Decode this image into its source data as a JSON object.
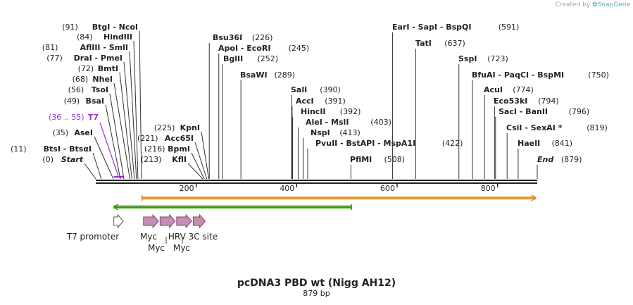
{
  "credit": {
    "prefix": "Created by",
    "brand": "SnapGene",
    "logo_icon": "snapgene-logo-icon"
  },
  "title": "pcDNA3 PBD wt (Nigg AH12)",
  "length_label": "879 bp",
  "sequence_length": 879,
  "colors": {
    "backbone": "#222222",
    "site_line": "#333333",
    "primer": "#9a32cd",
    "orf_orange_fill": "#fbd7a0",
    "orf_orange_stroke": "#e08a1e",
    "orf_green_fill": "#9fdc8a",
    "orf_green_stroke": "#3a8a1a",
    "tag_fill": "#c58fb3",
    "tag_stroke": "#7a4a6a"
  },
  "ruler_ticks": [
    {
      "label": "200",
      "pos": 200
    },
    {
      "label": "400",
      "pos": 400
    },
    {
      "label": "600",
      "pos": 600
    },
    {
      "label": "800",
      "pos": 800
    }
  ],
  "left_sites": [
    {
      "name": "Start",
      "pos_label": "(0)",
      "pos": 0,
      "italic": true
    },
    {
      "name": "BtsI - BtsαI",
      "pos_label": "(11)",
      "pos": 11
    },
    {
      "name": "AseI",
      "pos_label": "(35)",
      "pos": 35
    },
    {
      "name": "T7",
      "pos_label": "(36 .. 55)",
      "pos": 45,
      "primer": true
    },
    {
      "name": "BsaI",
      "pos_label": "(49)",
      "pos": 49
    },
    {
      "name": "TsoI",
      "pos_label": "(56)",
      "pos": 56
    },
    {
      "name": "NheI",
      "pos_label": "(68)",
      "pos": 68
    },
    {
      "name": "BmtI",
      "pos_label": "(72)",
      "pos": 72
    },
    {
      "name": "DraI - PmeI",
      "pos_label": "(77)",
      "pos": 77
    },
    {
      "name": "AflIII - SmlI",
      "pos_label": "(81)",
      "pos": 81
    },
    {
      "name": "HindIII",
      "pos_label": "(84)",
      "pos": 84
    },
    {
      "name": "BtgI - NcoI",
      "pos_label": "(91)",
      "pos": 91
    }
  ],
  "mid_left_sites": [
    {
      "name": "KflI",
      "pos_label": "(213)",
      "pos": 213
    },
    {
      "name": "BpmI",
      "pos_label": "(216)",
      "pos": 216
    },
    {
      "name": "Acc65I",
      "pos_label": "(221)",
      "pos": 221
    },
    {
      "name": "KpnI",
      "pos_label": "(225)",
      "pos": 225
    }
  ],
  "top_sites": [
    {
      "name": "Bsu36I",
      "pos_label": "(226)",
      "pos": 226
    },
    {
      "name": "ApoI - EcoRI",
      "pos_label": "(245)",
      "pos": 245
    },
    {
      "name": "BglII",
      "pos_label": "(252)",
      "pos": 252
    },
    {
      "name": "BsaWI",
      "pos_label": "(289)",
      "pos": 289
    },
    {
      "name": "SalI",
      "pos_label": "(390)",
      "pos": 390
    },
    {
      "name": "AccI",
      "pos_label": "(391)",
      "pos": 391
    },
    {
      "name": "HincII",
      "pos_label": "(392)",
      "pos": 392
    },
    {
      "name": "AleI - MslI",
      "pos_label": "(403)",
      "pos": 403
    },
    {
      "name": "NspI",
      "pos_label": "(413)",
      "pos": 413
    },
    {
      "name": "PvuII - BstAPI - MspA1I",
      "pos_label": "(422)",
      "pos": 422
    },
    {
      "name": "PflMI",
      "pos_label": "(508)",
      "pos": 508
    },
    {
      "name": "EarI - SapI - BspQI",
      "pos_label": "(591)",
      "pos": 591
    },
    {
      "name": "TatI",
      "pos_label": "(637)",
      "pos": 637
    },
    {
      "name": "SspI",
      "pos_label": "(723)",
      "pos": 723
    },
    {
      "name": "BfuAI - PaqCI - BspMI",
      "pos_label": "(750)",
      "pos": 750
    },
    {
      "name": "AcuI",
      "pos_label": "(774)",
      "pos": 774
    },
    {
      "name": "Eco53kI",
      "pos_label": "(794)",
      "pos": 794
    },
    {
      "name": "SacI - BanII",
      "pos_label": "(796)",
      "pos": 796
    },
    {
      "name": "CsiI - SexAI *",
      "pos_label": "(819)",
      "pos": 819
    },
    {
      "name": "HaeII",
      "pos_label": "(841)",
      "pos": 841
    },
    {
      "name": "End",
      "pos_label": "(879)",
      "pos": 879,
      "italic": true
    }
  ],
  "features": [
    {
      "name": "orange ORF (forward)",
      "type": "orf",
      "start": 92,
      "end": 876,
      "direction": "forward",
      "color": "orange"
    },
    {
      "name": "green ORF (reverse)",
      "type": "orf",
      "start": 36,
      "end": 509,
      "direction": "reverse",
      "color": "green"
    }
  ],
  "annotations": [
    {
      "label": "T7 promoter",
      "kind": "promoter",
      "start": 36,
      "end": 55
    },
    {
      "label": "Myc",
      "kind": "tag",
      "start": 95,
      "end": 125
    },
    {
      "label": "Myc",
      "kind": "tag",
      "start": 128,
      "end": 158
    },
    {
      "label": "Myc",
      "kind": "tag",
      "start": 161,
      "end": 191
    },
    {
      "label": "HRV 3C site",
      "kind": "tag",
      "start": 194,
      "end": 218
    }
  ]
}
